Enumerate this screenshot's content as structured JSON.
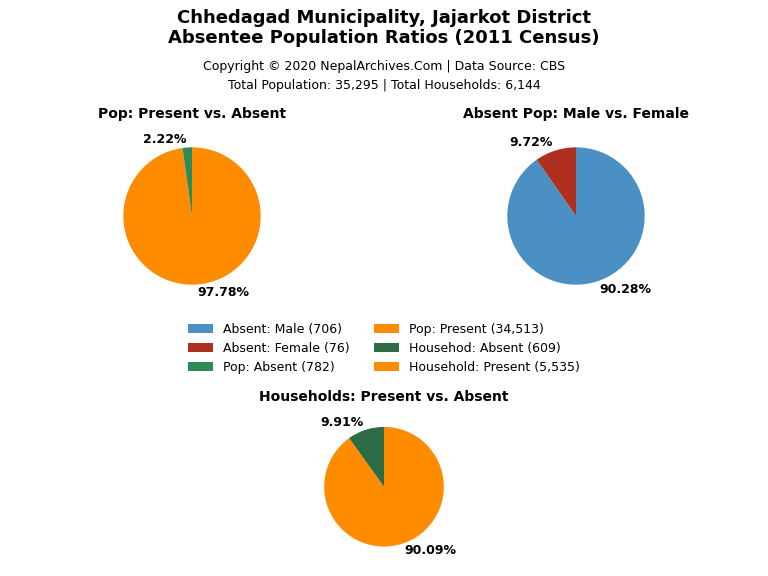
{
  "title": "Chhedagad Municipality, Jajarkot District\nAbsentee Population Ratios (2011 Census)",
  "annotations": [
    "Copyright © 2020 NepalArchives.Com | Data Source: CBS",
    "Total Population: 35,295 | Total Households: 6,144"
  ],
  "legend": "center",
  "series": [
    {
      "name": "Absent: Male (706)",
      "color": "#4A90C4"
    },
    {
      "name": "Absent: Female (76)",
      "color": "#B03020"
    },
    {
      "name": "Pop: Absent (782)",
      "color": "#2E8B57"
    },
    {
      "name": "Pop: Present (34,513)",
      "color": "#FF8C00"
    },
    {
      "name": "Househod: Absent (609)",
      "color": "#2E6B47"
    },
    {
      "name": "Household: Present (5,535)",
      "color": "#FF8C00"
    }
  ],
  "chart_data": [
    {
      "type": "pie",
      "title": "Pop: Present vs. Absent",
      "values": [
        97.78,
        2.22
      ],
      "value_labels": [
        "97.78%",
        "2.22%"
      ],
      "colors": [
        "#FF8C00",
        "#2E8B57"
      ]
    },
    {
      "type": "pie",
      "title": "Absent Pop: Male vs. Female",
      "values": [
        90.28,
        9.72
      ],
      "value_labels": [
        "90.28%",
        "9.72%"
      ],
      "colors": [
        "#4A90C4",
        "#B03020"
      ]
    },
    {
      "type": "pie",
      "title": "Households: Present vs. Absent",
      "values": [
        90.09,
        9.91
      ],
      "value_labels": [
        "90.09%",
        "9.91%"
      ],
      "colors": [
        "#FF8C00",
        "#2E6B47"
      ]
    }
  ]
}
